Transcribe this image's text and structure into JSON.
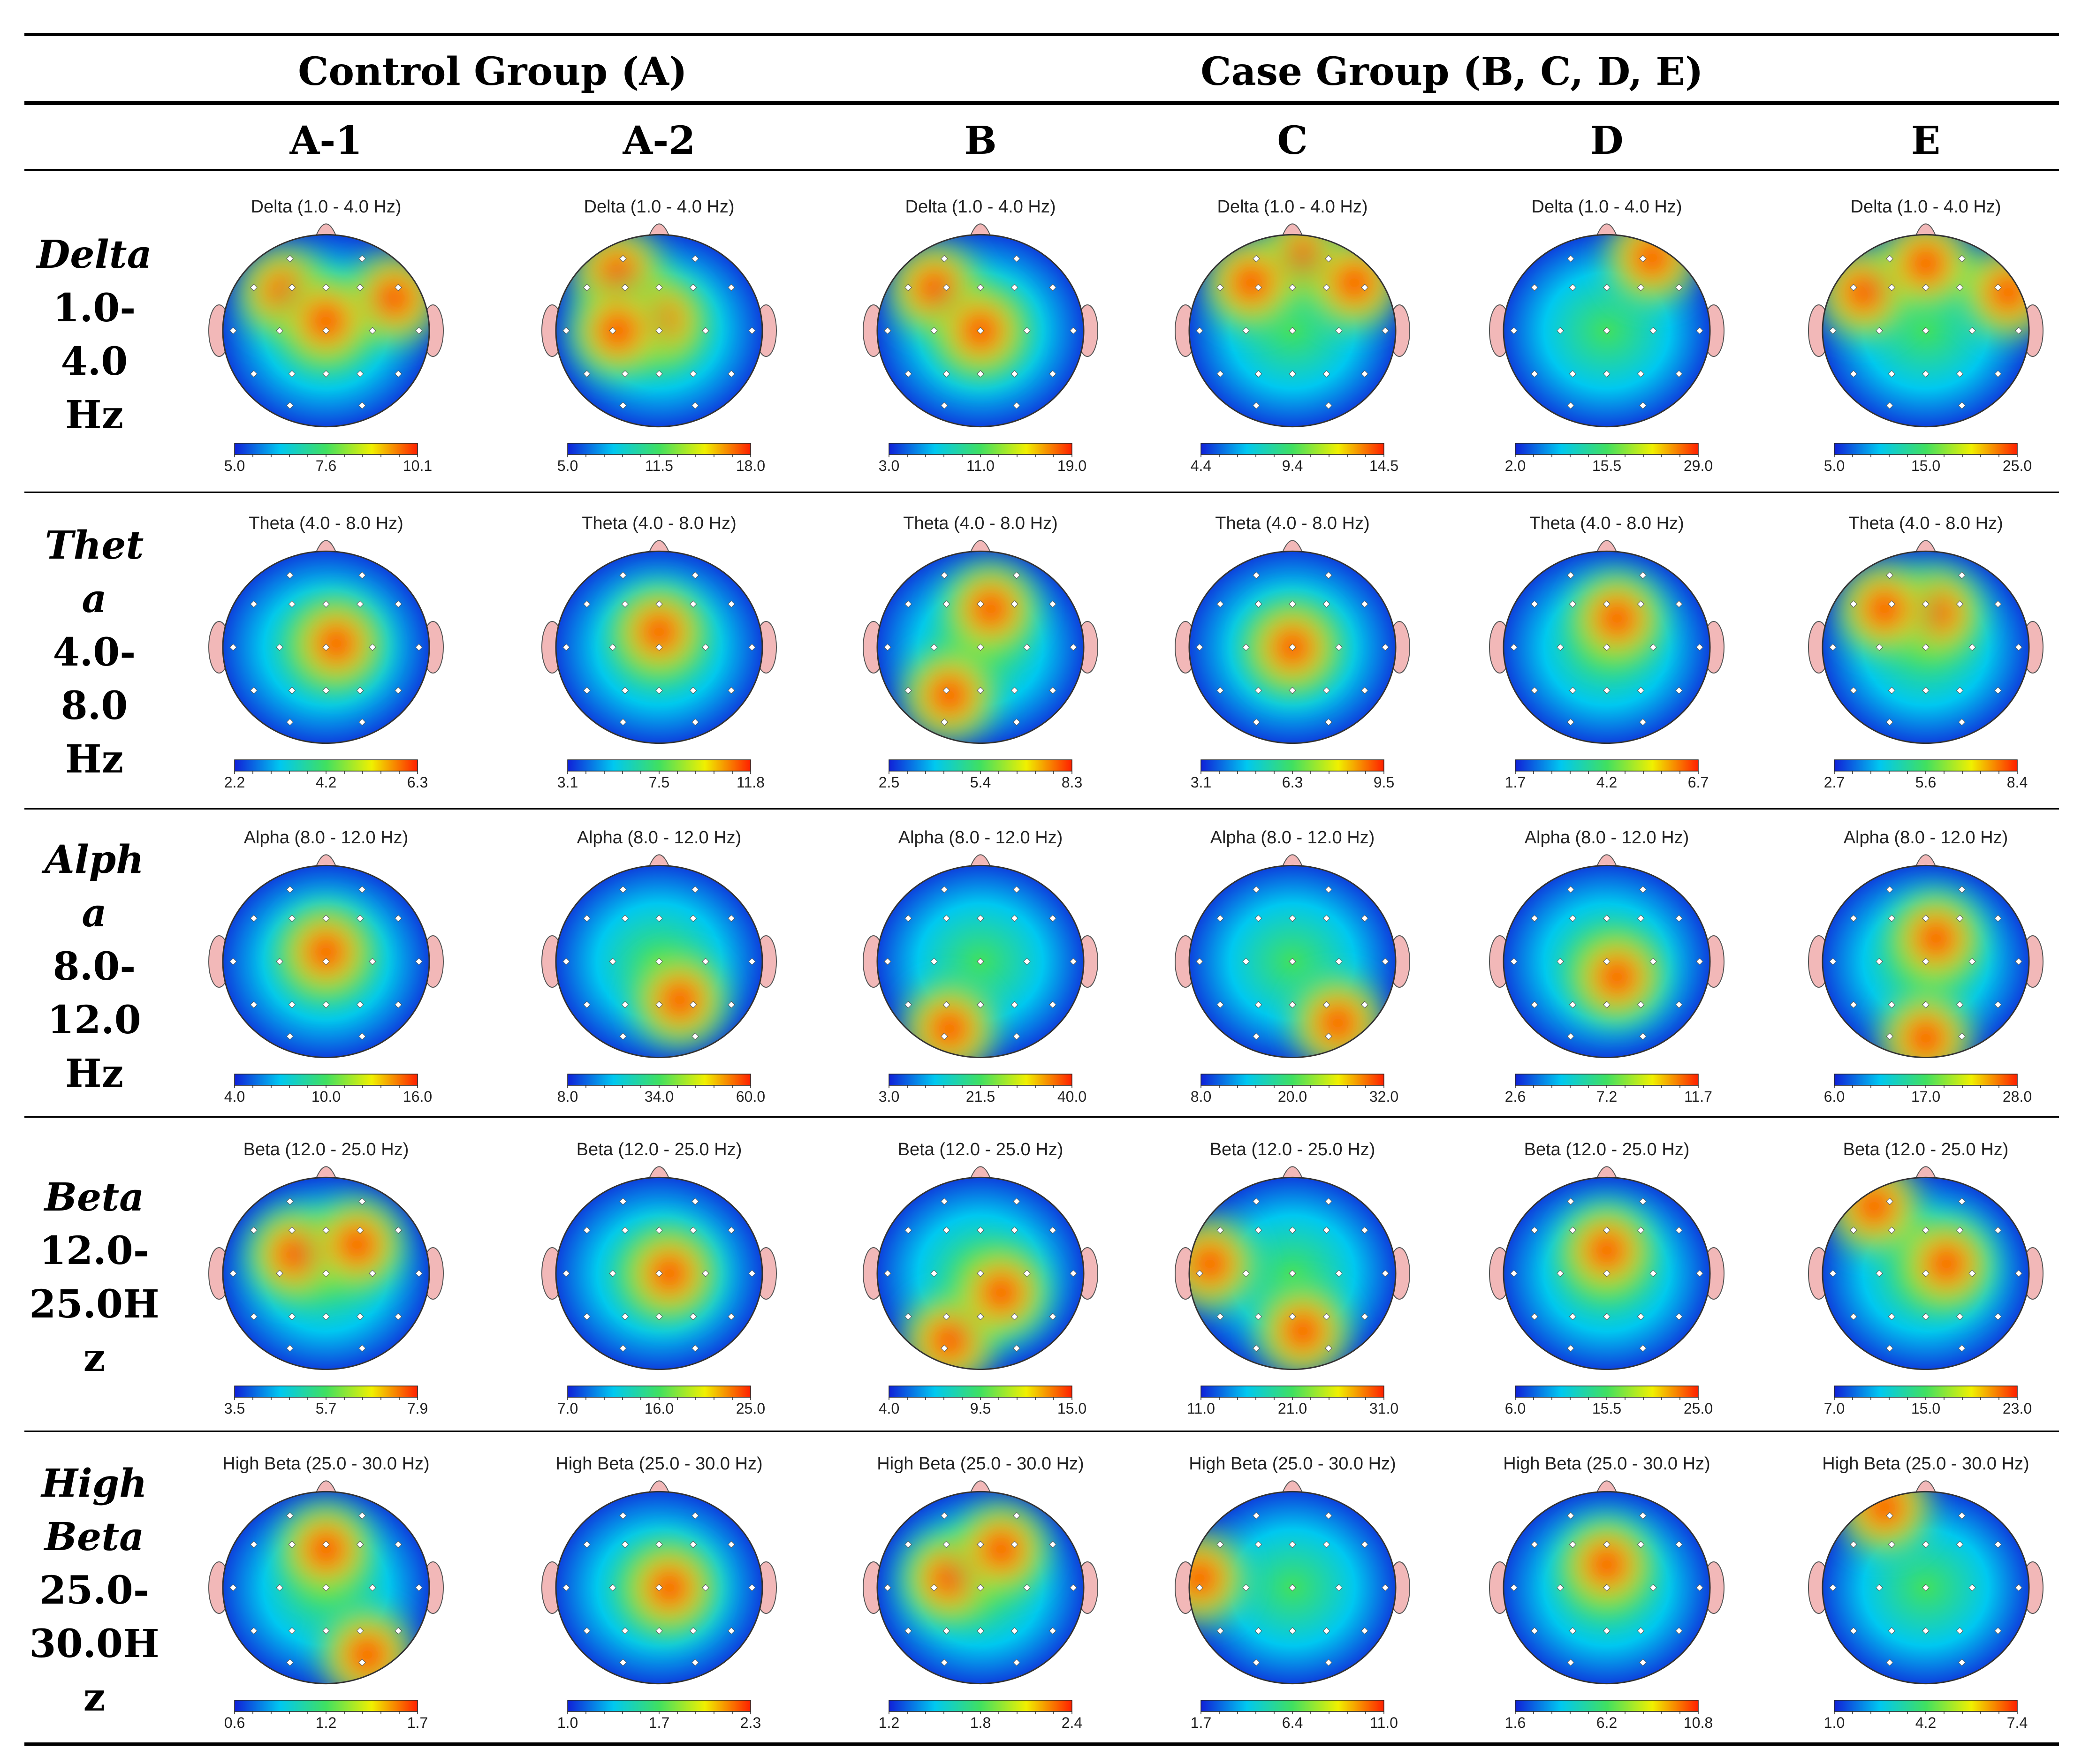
{
  "header": {
    "control_group": "Control Group (A)",
    "case_group": "Case Group (B, C, D, E)"
  },
  "columns": [
    "A-1",
    "A-2",
    "B",
    "C",
    "D",
    "E"
  ],
  "rows": [
    {
      "name_lines": [
        "Delta"
      ],
      "range_lines": [
        "1.0-",
        "4.0",
        "Hz"
      ]
    },
    {
      "name_lines": [
        "Thet",
        "a"
      ],
      "range_lines": [
        "4.0-",
        "8.0",
        "Hz"
      ]
    },
    {
      "name_lines": [
        "Alph",
        "a"
      ],
      "range_lines": [
        "8.0-",
        "12.0",
        "Hz"
      ]
    },
    {
      "name_lines": [
        "Beta"
      ],
      "range_lines": [
        "12.0-",
        "25.0H",
        "z"
      ]
    },
    {
      "name_lines": [
        "High",
        "Beta"
      ],
      "range_lines": [
        "25.0-",
        "30.0H",
        "z"
      ]
    }
  ],
  "maps": [
    [
      {
        "title": "Delta (1.0 - 4.0 Hz)",
        "ticks": [
          "5.0",
          "7.6",
          "10.1"
        ],
        "hot": [
          [
            0.83,
            0.33
          ],
          [
            0.3,
            0.3
          ],
          [
            0.5,
            0.45
          ]
        ]
      },
      {
        "title": "Delta (1.0 - 4.0 Hz)",
        "ticks": [
          "5.0",
          "11.5",
          "18.0"
        ],
        "hot": [
          [
            0.3,
            0.2
          ],
          [
            0.5,
            0.45
          ],
          [
            0.3,
            0.5
          ]
        ]
      },
      {
        "title": "Delta (1.0 - 4.0 Hz)",
        "ticks": [
          "3.0",
          "11.0",
          "19.0"
        ],
        "hot": [
          [
            0.28,
            0.28
          ],
          [
            0.5,
            0.5
          ]
        ]
      },
      {
        "title": "Delta (1.0 - 4.0 Hz)",
        "ticks": [
          "4.4",
          "9.4",
          "14.5"
        ],
        "hot": [
          [
            0.55,
            0.12
          ],
          [
            0.3,
            0.25
          ],
          [
            0.8,
            0.25
          ]
        ]
      },
      {
        "title": "Delta (1.0 - 4.0 Hz)",
        "ticks": [
          "2.0",
          "15.5",
          "29.0"
        ],
        "hot": [
          [
            0.72,
            0.12
          ]
        ]
      },
      {
        "title": "Delta (1.0 - 4.0 Hz)",
        "ticks": [
          "5.0",
          "15.0",
          "25.0"
        ],
        "hot": [
          [
            0.2,
            0.3
          ],
          [
            0.9,
            0.3
          ],
          [
            0.5,
            0.15
          ]
        ]
      }
    ],
    [
      {
        "title": "Theta (4.0 - 8.0 Hz)",
        "ticks": [
          "2.2",
          "4.2",
          "6.3"
        ],
        "hot": [
          [
            0.55,
            0.48
          ]
        ]
      },
      {
        "title": "Theta (4.0 - 8.0 Hz)",
        "ticks": [
          "3.1",
          "7.5",
          "11.8"
        ],
        "hot": [
          [
            0.5,
            0.42
          ]
        ]
      },
      {
        "title": "Theta (4.0 - 8.0 Hz)",
        "ticks": [
          "2.5",
          "5.4",
          "8.3"
        ],
        "hot": [
          [
            0.55,
            0.3
          ],
          [
            0.35,
            0.75
          ]
        ]
      },
      {
        "title": "Theta (4.0 - 8.0 Hz)",
        "ticks": [
          "3.1",
          "6.3",
          "9.5"
        ],
        "hot": [
          [
            0.5,
            0.5
          ]
        ]
      },
      {
        "title": "Theta (4.0 - 8.0 Hz)",
        "ticks": [
          "1.7",
          "4.2",
          "6.7"
        ],
        "hot": [
          [
            0.55,
            0.35
          ]
        ]
      },
      {
        "title": "Theta (4.0 - 8.0 Hz)",
        "ticks": [
          "2.7",
          "5.6",
          "8.4"
        ],
        "hot": [
          [
            0.55,
            0.32
          ],
          [
            0.3,
            0.3
          ]
        ]
      }
    ],
    [
      {
        "title": "Alpha (8.0 - 12.0 Hz)",
        "ticks": [
          "4.0",
          "10.0",
          "16.0"
        ],
        "hot": [
          [
            0.5,
            0.45
          ]
        ]
      },
      {
        "title": "Alpha (8.0 - 12.0 Hz)",
        "ticks": [
          "8.0",
          "34.0",
          "60.0"
        ],
        "hot": [
          [
            0.6,
            0.7
          ]
        ]
      },
      {
        "title": "Alpha (8.0 - 12.0 Hz)",
        "ticks": [
          "3.0",
          "21.5",
          "40.0"
        ],
        "hot": [
          [
            0.35,
            0.85
          ]
        ]
      },
      {
        "title": "Alpha (8.0 - 12.0 Hz)",
        "ticks": [
          "8.0",
          "20.0",
          "32.0"
        ],
        "hot": [
          [
            0.72,
            0.82
          ]
        ]
      },
      {
        "title": "Alpha (8.0 - 12.0 Hz)",
        "ticks": [
          "2.6",
          "7.2",
          "11.7"
        ],
        "hot": [
          [
            0.55,
            0.58
          ]
        ]
      },
      {
        "title": "Alpha (8.0 - 12.0 Hz)",
        "ticks": [
          "6.0",
          "17.0",
          "28.0"
        ],
        "hot": [
          [
            0.55,
            0.38
          ],
          [
            0.5,
            0.9
          ]
        ]
      }
    ],
    [
      {
        "title": "Beta (12.0 - 25.0 Hz)",
        "ticks": [
          "3.5",
          "5.7",
          "7.9"
        ],
        "hot": [
          [
            0.35,
            0.4
          ],
          [
            0.65,
            0.35
          ]
        ]
      },
      {
        "title": "Beta (12.0 - 25.0 Hz)",
        "ticks": [
          "7.0",
          "16.0",
          "25.0"
        ],
        "hot": [
          [
            0.55,
            0.5
          ]
        ]
      },
      {
        "title": "Beta (12.0 - 25.0 Hz)",
        "ticks": [
          "4.0",
          "9.5",
          "15.0"
        ],
        "hot": [
          [
            0.35,
            0.85
          ],
          [
            0.6,
            0.6
          ]
        ]
      },
      {
        "title": "Beta (12.0 - 25.0 Hz)",
        "ticks": [
          "11.0",
          "21.0",
          "31.0"
        ],
        "hot": [
          [
            0.1,
            0.45
          ],
          [
            0.55,
            0.8
          ]
        ]
      },
      {
        "title": "Beta (12.0 - 25.0 Hz)",
        "ticks": [
          "6.0",
          "15.5",
          "25.0"
        ],
        "hot": [
          [
            0.5,
            0.38
          ]
        ]
      },
      {
        "title": "Beta (12.0 - 25.0 Hz)",
        "ticks": [
          "7.0",
          "15.0",
          "23.0"
        ],
        "hot": [
          [
            0.25,
            0.15
          ],
          [
            0.6,
            0.45
          ]
        ]
      }
    ],
    [
      {
        "title": "High Beta (25.0 - 30.0 Hz)",
        "ticks": [
          "0.6",
          "1.2",
          "1.7"
        ],
        "hot": [
          [
            0.5,
            0.3
          ],
          [
            0.7,
            0.85
          ]
        ]
      },
      {
        "title": "High Beta (25.0 - 30.0 Hz)",
        "ticks": [
          "1.0",
          "1.7",
          "2.3"
        ],
        "hot": [
          [
            0.55,
            0.5
          ]
        ]
      },
      {
        "title": "High Beta (25.0 - 30.0 Hz)",
        "ticks": [
          "1.2",
          "1.8",
          "2.4"
        ],
        "hot": [
          [
            0.35,
            0.45
          ],
          [
            0.6,
            0.3
          ]
        ]
      },
      {
        "title": "High Beta (25.0 - 30.0 Hz)",
        "ticks": [
          "1.7",
          "6.4",
          "11.0"
        ],
        "hot": [
          [
            0.05,
            0.45
          ]
        ]
      },
      {
        "title": "High Beta (25.0 - 30.0 Hz)",
        "ticks": [
          "1.6",
          "6.2",
          "10.8"
        ],
        "hot": [
          [
            0.5,
            0.38
          ]
        ]
      },
      {
        "title": "High Beta (25.0 - 30.0 Hz)",
        "ticks": [
          "1.0",
          "4.2",
          "7.4"
        ],
        "hot": [
          [
            0.3,
            0.08
          ]
        ]
      }
    ]
  ],
  "colors": {
    "cold": "#1020d8",
    "cool": "#00c8f0",
    "mid": "#40e060",
    "warm": "#f0f000",
    "hot": "#ff2000",
    "ear": "#f2b8b8",
    "electrode": "#ffffff"
  }
}
